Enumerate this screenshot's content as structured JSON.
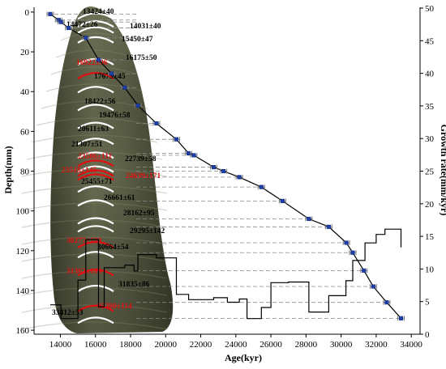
{
  "chart_data": {
    "type": "line",
    "xlabel": "Age(kyr)",
    "ylabel_left": "Depth(mm)",
    "ylabel_right": "Growth rate(mm/kyr)",
    "xlim": [
      12500,
      34500
    ],
    "x_ticks": [
      14000,
      16000,
      18000,
      20000,
      22000,
      24000,
      26000,
      28000,
      30000,
      32000,
      34000
    ],
    "ylim_left": [
      162,
      -2
    ],
    "y_ticks_left": [
      0,
      20,
      40,
      60,
      80,
      100,
      120,
      140,
      160
    ],
    "ylim_right": [
      0,
      50
    ],
    "y_ticks_right": [
      0,
      5,
      10,
      15,
      20,
      25,
      30,
      35,
      40,
      45,
      50
    ],
    "grid": false,
    "colors": {
      "age_model": "#1f3fa8",
      "age_line": "#000000",
      "sample_arc": "#ffffff",
      "rejected_label": "#e01010",
      "accepted_label": "#000000",
      "guide_line": "#888888",
      "stalagmite": "#55593f"
    },
    "series": [
      {
        "role": "age-depth model",
        "points": [
          {
            "x": 13424,
            "y": 1
          },
          {
            "x": 13900,
            "y": 4
          },
          {
            "x": 14031,
            "y": 5
          },
          {
            "x": 14472,
            "y": 8
          },
          {
            "x": 15450,
            "y": 13
          },
          {
            "x": 16175,
            "y": 24
          },
          {
            "x": 16922,
            "y": 31
          },
          {
            "x": 17673,
            "y": 38
          },
          {
            "x": 18422,
            "y": 47
          },
          {
            "x": 19476,
            "y": 56
          },
          {
            "x": 20611,
            "y": 64
          },
          {
            "x": 21307,
            "y": 71
          },
          {
            "x": 21600,
            "y": 72
          },
          {
            "x": 22739,
            "y": 78
          },
          {
            "x": 23300,
            "y": 80
          },
          {
            "x": 24200,
            "y": 83
          },
          {
            "x": 25455,
            "y": 88
          },
          {
            "x": 26661,
            "y": 95
          },
          {
            "x": 28162,
            "y": 104
          },
          {
            "x": 29295,
            "y": 108
          },
          {
            "x": 30300,
            "y": 116
          },
          {
            "x": 30664,
            "y": 121
          },
          {
            "x": 31300,
            "y": 130
          },
          {
            "x": 31835,
            "y": 138
          },
          {
            "x": 32600,
            "y": 146
          },
          {
            "x": 33412,
            "y": 154
          }
        ]
      },
      {
        "role": "growth rate",
        "steps": [
          {
            "x": 13424,
            "y": 4.5
          },
          {
            "x": 14031,
            "y": 4.5
          },
          {
            "x": 14031,
            "y": 2.4
          },
          {
            "x": 15000,
            "y": 2.4
          },
          {
            "x": 15000,
            "y": 8.3
          },
          {
            "x": 15450,
            "y": 8.3
          },
          {
            "x": 15450,
            "y": 14.5
          },
          {
            "x": 16175,
            "y": 14.5
          },
          {
            "x": 16175,
            "y": 4.2
          },
          {
            "x": 16500,
            "y": 4.2
          },
          {
            "x": 16500,
            "y": 10.2
          },
          {
            "x": 17673,
            "y": 10.2
          },
          {
            "x": 17673,
            "y": 10.6
          },
          {
            "x": 18200,
            "y": 10.6
          },
          {
            "x": 18200,
            "y": 9.7
          },
          {
            "x": 18422,
            "y": 9.7
          },
          {
            "x": 18422,
            "y": 12.2
          },
          {
            "x": 19476,
            "y": 12.2
          },
          {
            "x": 19476,
            "y": 11.7
          },
          {
            "x": 20611,
            "y": 11.7
          },
          {
            "x": 20611,
            "y": 6.1
          },
          {
            "x": 21307,
            "y": 6.1
          },
          {
            "x": 21307,
            "y": 5.3
          },
          {
            "x": 22739,
            "y": 5.3
          },
          {
            "x": 22739,
            "y": 5.6
          },
          {
            "x": 23518,
            "y": 5.6
          },
          {
            "x": 23518,
            "y": 4.9
          },
          {
            "x": 24200,
            "y": 4.9
          },
          {
            "x": 24200,
            "y": 5.4
          },
          {
            "x": 24639,
            "y": 5.4
          },
          {
            "x": 24639,
            "y": 2.4
          },
          {
            "x": 25455,
            "y": 2.4
          },
          {
            "x": 25455,
            "y": 4.1
          },
          {
            "x": 26000,
            "y": 4.1
          },
          {
            "x": 26000,
            "y": 7.9
          },
          {
            "x": 27000,
            "y": 7.9
          },
          {
            "x": 27000,
            "y": 8.0
          },
          {
            "x": 28162,
            "y": 8.0
          },
          {
            "x": 28162,
            "y": 3.4
          },
          {
            "x": 29295,
            "y": 3.4
          },
          {
            "x": 29295,
            "y": 5.9
          },
          {
            "x": 30277,
            "y": 5.9
          },
          {
            "x": 30277,
            "y": 8.2
          },
          {
            "x": 30664,
            "y": 8.2
          },
          {
            "x": 30664,
            "y": 11.3
          },
          {
            "x": 31362,
            "y": 11.3
          },
          {
            "x": 31362,
            "y": 14.0
          },
          {
            "x": 32000,
            "y": 14.0
          },
          {
            "x": 32000,
            "y": 15.3
          },
          {
            "x": 32500,
            "y": 15.3
          },
          {
            "x": 32500,
            "y": 16.1
          },
          {
            "x": 33412,
            "y": 16.1
          },
          {
            "x": 33412,
            "y": 13.3
          }
        ]
      }
    ],
    "age_labels": [
      {
        "text": "13424±40",
        "depth": 1,
        "rejected": false
      },
      {
        "text": "14472±26",
        "depth": 8,
        "rejected": false
      },
      {
        "text": "14031±40",
        "depth": 5,
        "rejected": false
      },
      {
        "text": "15450±47",
        "depth": 13,
        "rejected": false
      },
      {
        "text": "16922±96",
        "depth": 31,
        "rejected": true
      },
      {
        "text": "16175±50",
        "depth": 24,
        "rejected": false
      },
      {
        "text": "17673±45",
        "depth": 38,
        "rejected": false
      },
      {
        "text": "18422±56",
        "depth": 47,
        "rejected": false
      },
      {
        "text": "19476±58",
        "depth": 56,
        "rejected": false
      },
      {
        "text": "20611±63",
        "depth": 64,
        "rejected": false
      },
      {
        "text": "21307±51",
        "depth": 71,
        "rejected": false
      },
      {
        "text": "23586±111",
        "depth": 75,
        "rejected": true
      },
      {
        "text": "22739±58",
        "depth": 78,
        "rejected": false
      },
      {
        "text": "23518±145",
        "depth": 80,
        "rejected": true
      },
      {
        "text": "24639±171",
        "depth": 82,
        "rejected": true
      },
      {
        "text": "25455±71",
        "depth": 88,
        "rejected": false
      },
      {
        "text": "26661±61",
        "depth": 95,
        "rejected": false
      },
      {
        "text": "28162±95",
        "depth": 104,
        "rejected": false
      },
      {
        "text": "29295±142",
        "depth": 108,
        "rejected": false
      },
      {
        "text": "30277±130",
        "depth": 116,
        "rejected": true
      },
      {
        "text": "30664±54",
        "depth": 121,
        "rejected": false
      },
      {
        "text": "31362±199",
        "depth": 130,
        "rejected": true
      },
      {
        "text": "31835±86",
        "depth": 138,
        "rejected": false
      },
      {
        "text": "32380±114",
        "depth": 148,
        "rejected": true
      },
      {
        "text": "33412±53",
        "depth": 154,
        "rejected": false
      }
    ]
  }
}
